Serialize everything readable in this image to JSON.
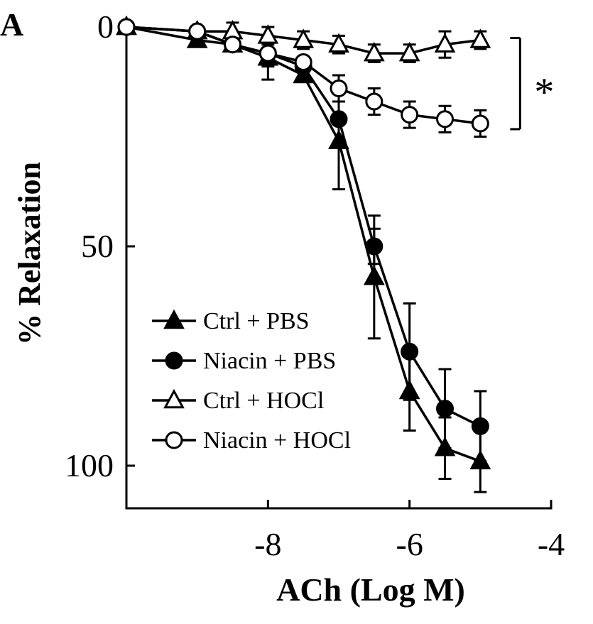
{
  "chart_data": {
    "type": "line",
    "panel_label": "A",
    "xlabel": "ACh (Log M)",
    "ylabel": "% Relaxation",
    "xlim": [
      -10,
      -4
    ],
    "ylim": [
      0,
      110
    ],
    "y_inverted": true,
    "x_ticks": [
      -8,
      -6,
      -4
    ],
    "x_tick_labels": [
      "-8",
      "-6",
      "-4"
    ],
    "y_ticks": [
      0,
      50,
      100
    ],
    "y_tick_labels": [
      "0",
      "50",
      "100"
    ],
    "significance_label": "*",
    "significance_between": [
      "Ctrl + HOCl",
      "Niacin + HOCl"
    ],
    "x": [
      -10,
      -9,
      -8.5,
      -8,
      -7.5,
      -7,
      -6.5,
      -6,
      -5.5,
      -5
    ],
    "series": [
      {
        "name": "Ctrl + PBS",
        "marker": "triangle",
        "fill": "filled",
        "values": [
          0,
          3,
          4,
          7,
          11,
          26,
          57,
          83,
          96,
          99
        ],
        "errors": [
          0,
          1,
          1,
          5,
          1,
          11,
          14,
          9,
          7,
          7
        ]
      },
      {
        "name": "Niacin + PBS",
        "marker": "circle",
        "fill": "filled",
        "values": [
          0,
          1,
          4,
          6,
          9,
          21,
          50,
          74,
          87,
          91
        ],
        "errors": [
          0,
          1,
          1,
          1,
          1,
          1,
          4,
          11,
          9,
          8
        ]
      },
      {
        "name": "Ctrl + HOCl",
        "marker": "triangle",
        "fill": "open",
        "values": [
          0,
          1,
          1,
          2,
          3,
          4,
          6,
          6,
          4,
          3
        ],
        "errors": [
          0,
          1,
          2,
          2,
          2,
          2,
          2,
          2,
          3,
          2
        ]
      },
      {
        "name": "Niacin + HOCl",
        "marker": "circle",
        "fill": "open",
        "values": [
          0,
          1,
          4,
          6,
          8,
          14,
          17,
          20,
          21,
          22
        ],
        "errors": [
          0,
          1,
          1,
          3,
          1,
          3,
          3,
          3,
          3,
          3
        ]
      }
    ],
    "legend_position": "lower-left",
    "colors": {
      "line": "#000000",
      "background": "#ffffff"
    }
  }
}
